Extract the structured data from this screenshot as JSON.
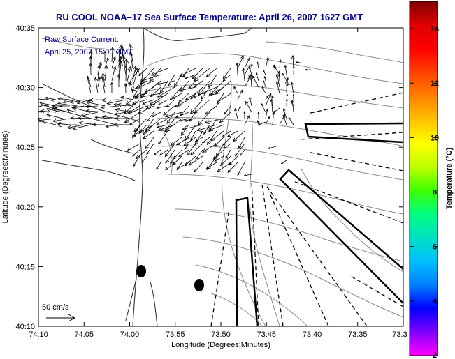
{
  "title": "RU COOL  NOAA–17  Sea Surface Temperature:  April 26, 2007 1627 GMT",
  "annotation": {
    "line1": "Raw Surface Current:",
    "line2": "April 25, 2007 15:00 GMT"
  },
  "scale": {
    "label": "50 cm/s"
  },
  "axes": {
    "xlabel": "Longitude (Degrees:Minutes)",
    "ylabel": "Latitude (Degrees:Minutes)",
    "xticks": [
      "74:10",
      "74:05",
      "74:00",
      "73:55",
      "73:50",
      "73:45",
      "73:40",
      "73:35",
      "73:3"
    ],
    "yticks": [
      "40:35",
      "40:30",
      "40:25",
      "40:20",
      "40:15",
      "40:10"
    ]
  },
  "colorbar": {
    "label": "Temperature (°C)",
    "ticks": [
      "14",
      "12",
      "10",
      "8",
      "6",
      "4",
      "2"
    ],
    "range": [
      2,
      15
    ],
    "colors": [
      "#ff00ff",
      "#8000ff",
      "#0000ff",
      "#0080ff",
      "#00c0ff",
      "#00e0c0",
      "#00ff80",
      "#40ff00",
      "#c0ff00",
      "#ffff00",
      "#ffc000",
      "#ff8000",
      "#ff4000",
      "#ff0000",
      "#e00000",
      "#800000"
    ]
  },
  "colors": {
    "title": "#00008b",
    "annotation": "#00008b",
    "land_lines": "#888888",
    "vectors": "#000000"
  },
  "icons": [
    "colorbar",
    "scale-arrow",
    "current-vectors",
    "mooring-dot"
  ]
}
